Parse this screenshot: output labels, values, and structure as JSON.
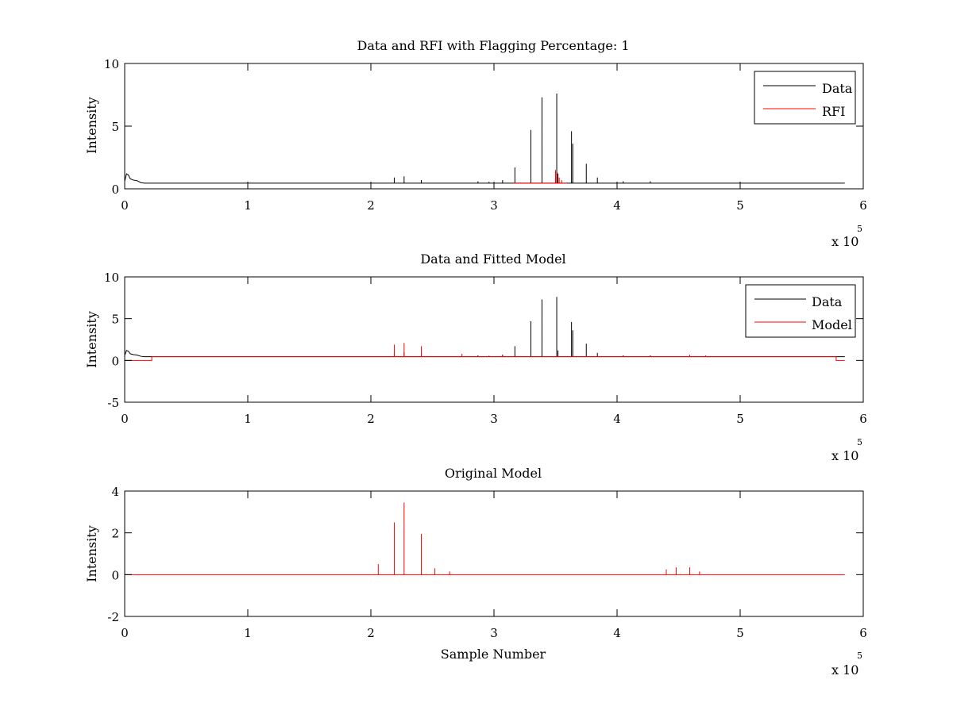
{
  "colors": {
    "data": "#000000",
    "rfi": "#ff0000",
    "model": "#ff0000",
    "axes": "#000000",
    "background": "#ffffff"
  },
  "chart_data": [
    {
      "type": "line",
      "title": "Data and RFI with Flagging Percentage: 1",
      "xlabel": "",
      "ylabel": "Intensity",
      "xlim": [
        0,
        600000
      ],
      "ylim": [
        0,
        10
      ],
      "xticks": [
        0,
        1,
        2,
        3,
        4,
        5,
        6
      ],
      "yticks": [
        0,
        5,
        10
      ],
      "x_multiplier": {
        "base": "x 10",
        "exponent": "5"
      },
      "grid": false,
      "legend": {
        "position": "top-right",
        "entries": [
          "Data",
          "RFI"
        ]
      },
      "series": [
        {
          "name": "Data",
          "color": "#000000",
          "baseline": 0.45,
          "start_profile": [
            [
              0,
              0.6
            ],
            [
              1500,
              1.2
            ],
            [
              3000,
              1.1
            ],
            [
              4500,
              0.8
            ],
            [
              7000,
              0.7
            ],
            [
              10000,
              0.65
            ],
            [
              13000,
              0.5
            ],
            [
              16000,
              0.45
            ]
          ],
          "end_x": 585000,
          "spikes": [
            [
              219000,
              0.9
            ],
            [
              227000,
              1.0
            ],
            [
              241000,
              0.7
            ],
            [
              287000,
              0.6
            ],
            [
              296000,
              0.55
            ],
            [
              307000,
              0.7
            ],
            [
              317000,
              1.7
            ],
            [
              330000,
              4.7
            ],
            [
              339000,
              7.3
            ],
            [
              351000,
              7.6
            ],
            [
              352000,
              1.2
            ],
            [
              363000,
              4.6
            ],
            [
              364000,
              3.6
            ],
            [
              375000,
              2.0
            ],
            [
              384000,
              0.9
            ],
            [
              405000,
              0.6
            ],
            [
              427000,
              0.6
            ]
          ]
        },
        {
          "name": "RFI",
          "color": "#ff0000",
          "baseline": 0.45,
          "start_x": 316000,
          "end_x": 359000,
          "spikes": [
            [
              350000,
              1.5
            ],
            [
              351500,
              1.3
            ],
            [
              353000,
              0.9
            ],
            [
              355000,
              0.7
            ]
          ]
        }
      ]
    },
    {
      "type": "line",
      "title": "Data and Fitted Model",
      "xlabel": "",
      "ylabel": "Intensity",
      "xlim": [
        0,
        600000
      ],
      "ylim": [
        -5,
        10
      ],
      "xticks": [
        0,
        1,
        2,
        3,
        4,
        5,
        6
      ],
      "yticks": [
        -5,
        0,
        5,
        10
      ],
      "x_multiplier": {
        "base": "x 10",
        "exponent": "5"
      },
      "grid": false,
      "legend": {
        "position": "top-right",
        "entries": [
          "Data",
          "Model"
        ]
      },
      "series": [
        {
          "name": "Data",
          "color": "#000000",
          "baseline": 0.45,
          "start_profile": [
            [
              0,
              0.6
            ],
            [
              1500,
              1.2
            ],
            [
              3000,
              1.1
            ],
            [
              4500,
              0.8
            ],
            [
              7000,
              0.7
            ],
            [
              10000,
              0.65
            ],
            [
              13000,
              0.5
            ],
            [
              16000,
              0.45
            ]
          ],
          "end_x": 585000,
          "spikes": [
            [
              219000,
              0.9
            ],
            [
              227000,
              1.0
            ],
            [
              241000,
              0.7
            ],
            [
              287000,
              0.6
            ],
            [
              296000,
              0.55
            ],
            [
              307000,
              0.7
            ],
            [
              317000,
              1.7
            ],
            [
              330000,
              4.7
            ],
            [
              339000,
              7.3
            ],
            [
              351000,
              7.6
            ],
            [
              352000,
              1.2
            ],
            [
              363000,
              4.6
            ],
            [
              364000,
              3.6
            ],
            [
              375000,
              2.0
            ],
            [
              384000,
              0.9
            ],
            [
              405000,
              0.6
            ],
            [
              427000,
              0.6
            ]
          ]
        },
        {
          "name": "Model",
          "color": "#ff0000",
          "baseline": 0.45,
          "start_segment": [
            [
              0,
              0.0
            ],
            [
              22000,
              0.0
            ],
            [
              22000,
              0.45
            ]
          ],
          "end_segment": [
            [
              578000,
              0.45
            ],
            [
              578000,
              0.0
            ],
            [
              585000,
              0.0
            ]
          ],
          "end_x": 585000,
          "spikes": [
            [
              219000,
              1.9
            ],
            [
              227000,
              2.1
            ],
            [
              241000,
              1.7
            ],
            [
              274000,
              0.8
            ],
            [
              307000,
              0.6
            ],
            [
              459000,
              0.7
            ],
            [
              472000,
              0.6
            ]
          ]
        }
      ]
    },
    {
      "type": "line",
      "title": "Original Model",
      "xlabel": "Sample Number",
      "ylabel": "Intensity",
      "xlim": [
        0,
        600000
      ],
      "ylim": [
        -2,
        4
      ],
      "xticks": [
        0,
        1,
        2,
        3,
        4,
        5,
        6
      ],
      "yticks": [
        -2,
        0,
        2,
        4
      ],
      "x_multiplier": {
        "base": "x 10",
        "exponent": "5"
      },
      "grid": false,
      "legend": null,
      "series": [
        {
          "name": "",
          "color": "#ff0000",
          "baseline": 0.0,
          "end_x": 585000,
          "spikes": [
            [
              206000,
              0.5
            ],
            [
              219000,
              2.5
            ],
            [
              227000,
              3.45
            ],
            [
              241000,
              1.95
            ],
            [
              252000,
              0.3
            ],
            [
              264000,
              0.15
            ],
            [
              440000,
              0.25
            ],
            [
              448000,
              0.35
            ],
            [
              459000,
              0.35
            ],
            [
              467000,
              0.15
            ]
          ]
        }
      ]
    }
  ]
}
